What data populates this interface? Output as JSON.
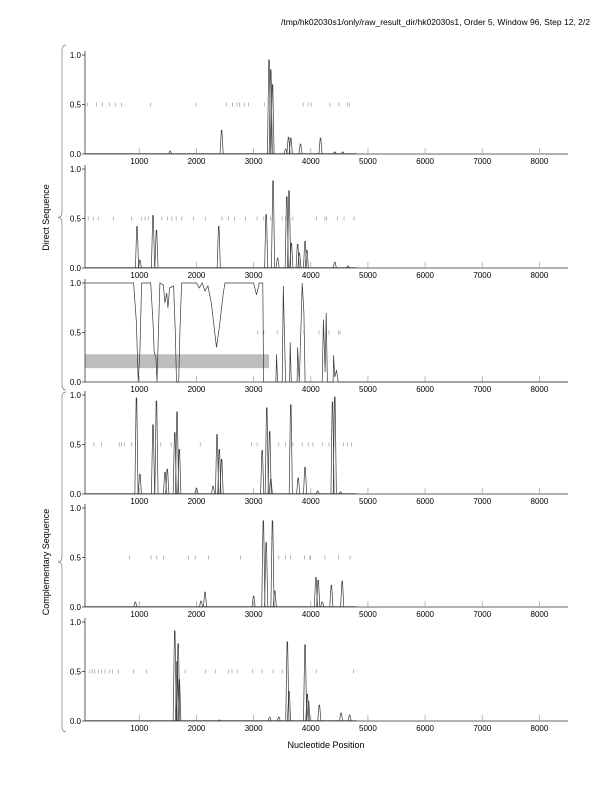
{
  "chart_data": {
    "type": "line",
    "title": "/tmp/hk02030s1/only/raw_result_dir/hk02030s1, Order 5, Window 96, Step 12, 2/2",
    "xlabel": "Nucleotide Position",
    "xlim": [
      50,
      8500
    ],
    "ylim": [
      0,
      1
    ],
    "x_ticks": [
      "1000",
      "2000",
      "3000",
      "4000",
      "5000",
      "6000",
      "7000",
      "8000"
    ],
    "x_tick_values": [
      1000,
      2000,
      3000,
      4000,
      5000,
      6000,
      7000,
      8000
    ],
    "y_ticks": [
      "0.0",
      "0.5",
      "1.0"
    ],
    "y_tick_values": [
      0,
      0.5,
      1
    ],
    "groups": [
      {
        "label": "Direct Sequence",
        "panels": [
          0,
          1,
          2
        ]
      },
      {
        "label": "Complementary Sequence",
        "panels": [
          3,
          4,
          5
        ]
      }
    ],
    "panels": [
      {
        "peaks": [
          [
            1540,
            0.03
          ],
          [
            2440,
            0.24
          ],
          [
            3270,
            0.95
          ],
          [
            3300,
            0.85
          ],
          [
            3330,
            0.7
          ],
          [
            3560,
            0.05
          ],
          [
            3610,
            0.17
          ],
          [
            3650,
            0.16
          ],
          [
            3820,
            0.1
          ],
          [
            4170,
            0.16
          ],
          [
            4420,
            0.02
          ],
          [
            4560,
            0.02
          ]
        ],
        "marks": [
          89,
          253,
          358,
          474,
          579,
          691,
          1200,
          1989,
          2521,
          2632,
          2709,
          2754,
          2837,
          2912,
          3187,
          3867,
          3954,
          4007,
          4334,
          4492,
          4639,
          4674
        ]
      },
      {
        "peaks": [
          [
            960,
            0.42
          ],
          [
            1010,
            0.08
          ],
          [
            1240,
            0.53
          ],
          [
            1300,
            0.38
          ],
          [
            2390,
            0.42
          ],
          [
            3220,
            0.54
          ],
          [
            3340,
            0.88
          ],
          [
            3420,
            0.1
          ],
          [
            3580,
            0.72
          ],
          [
            3620,
            0.78
          ],
          [
            3660,
            0.25
          ],
          [
            3770,
            0.24
          ],
          [
            3800,
            0.15
          ],
          [
            3900,
            0.27
          ],
          [
            3930,
            0.18
          ],
          [
            4420,
            0.06
          ],
          [
            4650,
            0.02
          ]
        ],
        "marks": [
          106,
          194,
          282,
          545,
          867,
          1042,
          1101,
          1159,
          1247,
          1393,
          1493,
          1569,
          1645,
          1744,
          1949,
          2154,
          2446,
          2563,
          2663,
          2856,
          3061,
          3178,
          3295,
          3499,
          3558,
          3687,
          4102,
          4248,
          4277,
          4465,
          4582,
          4757
        ]
      },
      {
        "curve": [
          [
            60,
            1
          ],
          [
            900,
            1
          ],
          [
            950,
            0.6
          ],
          [
            980,
            0
          ],
          [
            1010,
            0.3
          ],
          [
            1040,
            1
          ],
          [
            1200,
            1
          ],
          [
            1240,
            0.6
          ],
          [
            1260,
            0.3
          ],
          [
            1290,
            0.25
          ],
          [
            1310,
            0
          ],
          [
            1340,
            0.6
          ],
          [
            1360,
            1
          ],
          [
            1420,
            0.98
          ],
          [
            1450,
            0.8
          ],
          [
            1480,
            0.9
          ],
          [
            1500,
            0.75
          ],
          [
            1530,
            0.95
          ],
          [
            1600,
            0.97
          ],
          [
            1630,
            0.5
          ],
          [
            1650,
            0
          ],
          [
            1690,
            0
          ],
          [
            1710,
            0.5
          ],
          [
            1740,
            1
          ],
          [
            2000,
            1
          ],
          [
            2050,
            0.95
          ],
          [
            2100,
            1
          ],
          [
            2150,
            0.92
          ],
          [
            2200,
            0.97
          ],
          [
            2260,
            0.8
          ],
          [
            2300,
            0.6
          ],
          [
            2350,
            0.35
          ],
          [
            2400,
            0.55
          ],
          [
            2430,
            0.7
          ],
          [
            2470,
            0.9
          ],
          [
            2500,
            1
          ],
          [
            3000,
            1
          ],
          [
            3050,
            0.88
          ],
          [
            3100,
            1
          ],
          [
            3160,
            1
          ],
          [
            3175,
            0
          ],
          [
            3390,
            0
          ],
          [
            3400,
            0.28
          ],
          [
            3420,
            0
          ],
          [
            3500,
            0
          ],
          [
            3520,
            0.97
          ],
          [
            3560,
            0
          ],
          [
            3630,
            0
          ],
          [
            3640,
            0.4
          ],
          [
            3660,
            0
          ],
          [
            3760,
            0
          ],
          [
            3770,
            0.35
          ],
          [
            3800,
            0
          ],
          [
            3830,
            0.6
          ],
          [
            3850,
            1
          ],
          [
            3880,
            0.7
          ],
          [
            3900,
            0
          ],
          [
            4200,
            0
          ],
          [
            4220,
            0.63
          ],
          [
            4250,
            0.1
          ],
          [
            4270,
            0.7
          ],
          [
            4290,
            0
          ],
          [
            4390,
            0
          ],
          [
            4400,
            0.27
          ],
          [
            4420,
            0.05
          ],
          [
            4450,
            0.12
          ],
          [
            4480,
            0
          ],
          [
            8500,
            0
          ]
        ],
        "band": {
          "x": [
            50,
            3270
          ],
          "y": [
            0.14,
            0.28
          ]
        },
        "marks": [
          3072,
          3178,
          3412,
          3880,
          4143,
          4318,
          4482,
          4511
        ]
      },
      {
        "peaks": [
          [
            950,
            0.97
          ],
          [
            1010,
            0.2
          ],
          [
            1240,
            0.7
          ],
          [
            1300,
            0.94
          ],
          [
            1450,
            0.22
          ],
          [
            1490,
            0.25
          ],
          [
            1620,
            0.62
          ],
          [
            1660,
            0.83
          ],
          [
            1700,
            0.45
          ],
          [
            2000,
            0.06
          ],
          [
            2290,
            0.08
          ],
          [
            2360,
            0.6
          ],
          [
            2400,
            0.45
          ],
          [
            2440,
            0.35
          ],
          [
            3150,
            0.44
          ],
          [
            3230,
            0.87
          ],
          [
            3280,
            0.63
          ],
          [
            3300,
            0.15
          ],
          [
            3650,
            0.9
          ],
          [
            3780,
            0.16
          ],
          [
            3900,
            0.27
          ],
          [
            4120,
            0.03
          ],
          [
            4380,
            0.93
          ],
          [
            4420,
            0.98
          ],
          [
            4520,
            0.02
          ]
        ],
        "marks": [
          206,
          340,
          650,
          691,
          738,
          867,
          1376,
          1557,
          2066,
          2961,
          3061,
          3441,
          3558,
          3687,
          3850,
          3955,
          4037,
          4201,
          4318,
          4570,
          4640,
          4710
        ]
      },
      {
        "peaks": [
          [
            930,
            0.05
          ],
          [
            2080,
            0.06
          ],
          [
            2150,
            0.15
          ],
          [
            3000,
            0.11
          ],
          [
            3170,
            0.87
          ],
          [
            3220,
            0.65
          ],
          [
            3330,
            0.87
          ],
          [
            3370,
            0.16
          ],
          [
            4090,
            0.3
          ],
          [
            4130,
            0.27
          ],
          [
            4200,
            0.05
          ],
          [
            4360,
            0.22
          ],
          [
            4550,
            0.26
          ]
        ],
        "marks": [
          826,
          1206,
          1306,
          1423,
          1861,
          1978,
          2212,
          2768,
          3441,
          3558,
          3646,
          3891,
          3985,
          3997,
          4248,
          4482,
          4687
        ]
      },
      {
        "peaks": [
          [
            1620,
            0.91
          ],
          [
            1660,
            0.6
          ],
          [
            1680,
            0.78
          ],
          [
            1700,
            0.42
          ],
          [
            2400,
            0.01
          ],
          [
            3280,
            0.04
          ],
          [
            3440,
            0.04
          ],
          [
            3590,
            0.8
          ],
          [
            3620,
            0.3
          ],
          [
            3900,
            0.77
          ],
          [
            3940,
            0.27
          ],
          [
            3960,
            0.2
          ],
          [
            4150,
            0.16
          ],
          [
            4530,
            0.08
          ],
          [
            4680,
            0.06
          ]
        ],
        "marks": [
          136,
          177,
          223,
          282,
          340,
          399,
          475,
          533,
          633,
          896,
          1130,
          1803,
          2154,
          2329,
          2563,
          2622,
          2709,
          2984,
          3148,
          3341,
          3499,
          4096,
          4745
        ]
      }
    ],
    "colors": {
      "line": "#3a3a3a",
      "band": "#bdbdbd",
      "mark": "#9a9a9a",
      "axis": "#333333"
    }
  }
}
